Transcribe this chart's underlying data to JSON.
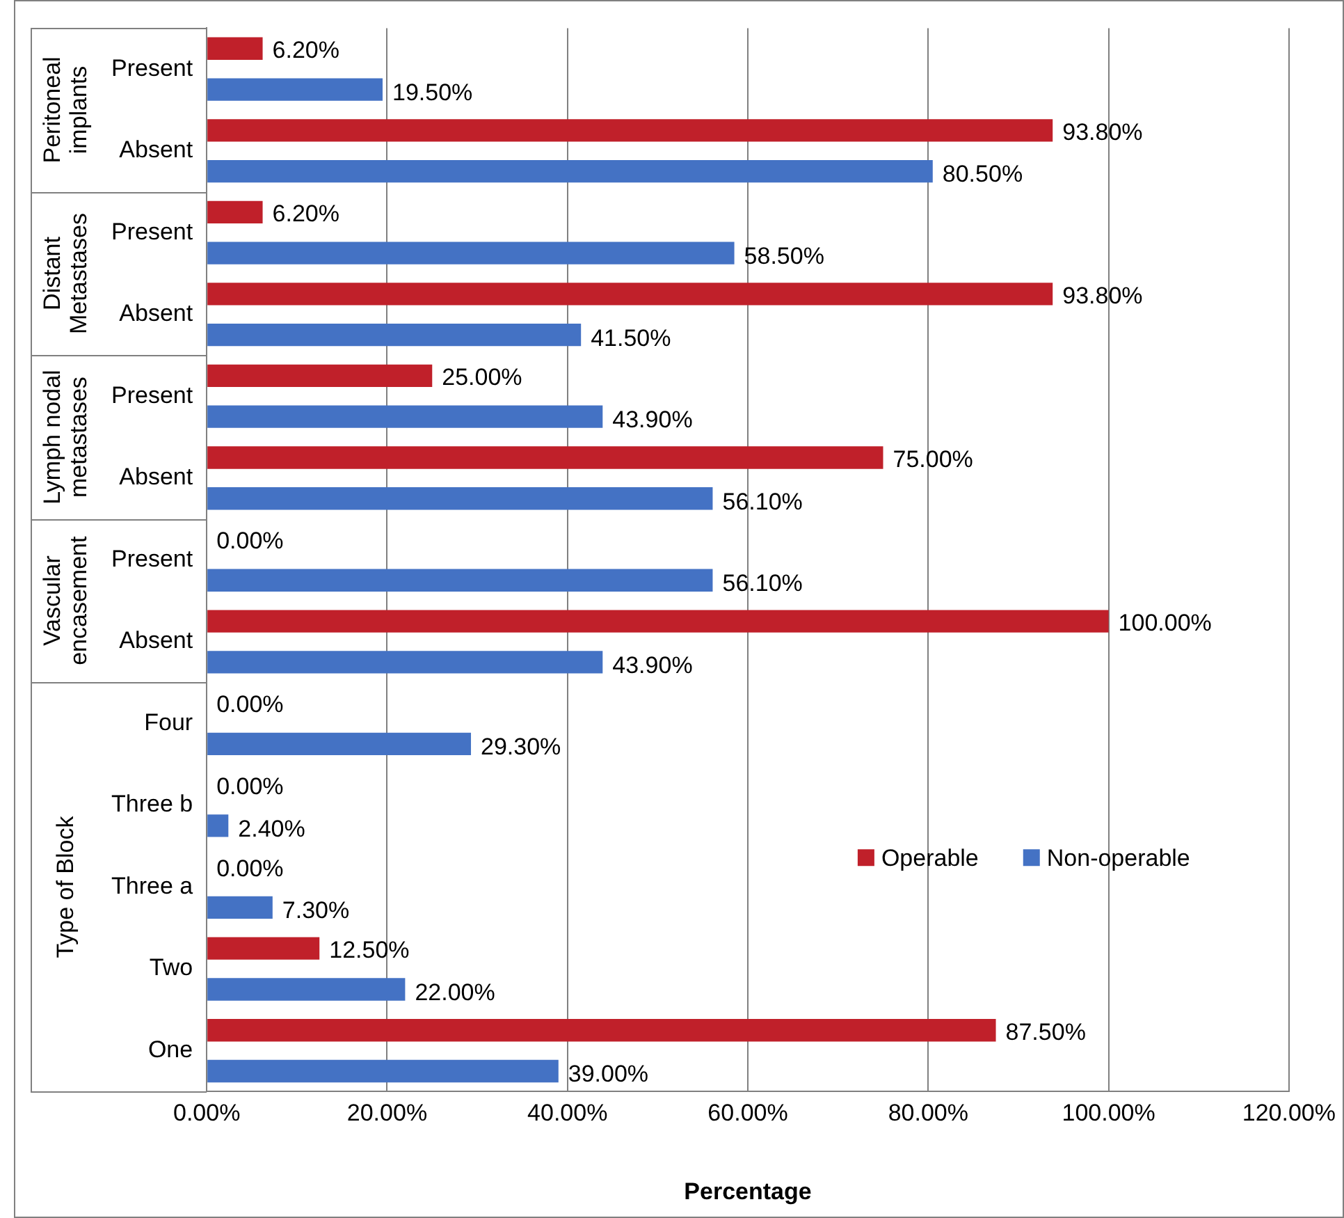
{
  "chart_data": {
    "type": "bar",
    "orientation": "horizontal",
    "xlabel": "Percentage",
    "categories": [
      "Present",
      "Absent",
      "Present",
      "Absent",
      "Present",
      "Absent",
      "Present",
      "Absent",
      "Four",
      "Three b",
      "Three a",
      "Two",
      "One"
    ],
    "series": [
      {
        "name": "Operable",
        "color": "#c0202a",
        "values": [
          6.2,
          93.8,
          6.2,
          93.8,
          25,
          75,
          0,
          100,
          0,
          0,
          0,
          12.5,
          87.5
        ],
        "value_labels": [
          "6.20%",
          "93.80%",
          "6.20%",
          "93.80%",
          "25.00%",
          "75.00%",
          "0.00%",
          "100.00%",
          "0.00%",
          "0.00%",
          "0.00%",
          "12.50%",
          "87.50%"
        ]
      },
      {
        "name": "Non-operable",
        "color": "#4472c4",
        "values": [
          19.5,
          80.5,
          58.5,
          41.5,
          43.9,
          56.1,
          56.1,
          43.9,
          29.3,
          2.4,
          7.3,
          22,
          39
        ],
        "value_labels": [
          "19.50%",
          "80.50%",
          "58.50%",
          "41.50%",
          "43.90%",
          "56.10%",
          "56.10%",
          "43.90%",
          "29.30%",
          "2.40%",
          "7.30%",
          "22.00%",
          "39.00%"
        ]
      }
    ],
    "xlim": [
      0,
      120
    ],
    "xticks": [
      {
        "value": 0,
        "label": "0.00%"
      },
      {
        "value": 20,
        "label": "20.00%"
      },
      {
        "value": 40,
        "label": "40.00%"
      },
      {
        "value": 60,
        "label": "60.00%"
      },
      {
        "value": 80,
        "label": "80.00%"
      },
      {
        "value": 100,
        "label": "100.00%"
      },
      {
        "value": 120,
        "label": "120.00%"
      }
    ],
    "annotations": [
      "Peritoneal implants",
      "Distant Metastases",
      "Lymph nodal metastases",
      "Vascular encasement",
      "Type of Block"
    ],
    "grid": "x",
    "legend": "right"
  }
}
